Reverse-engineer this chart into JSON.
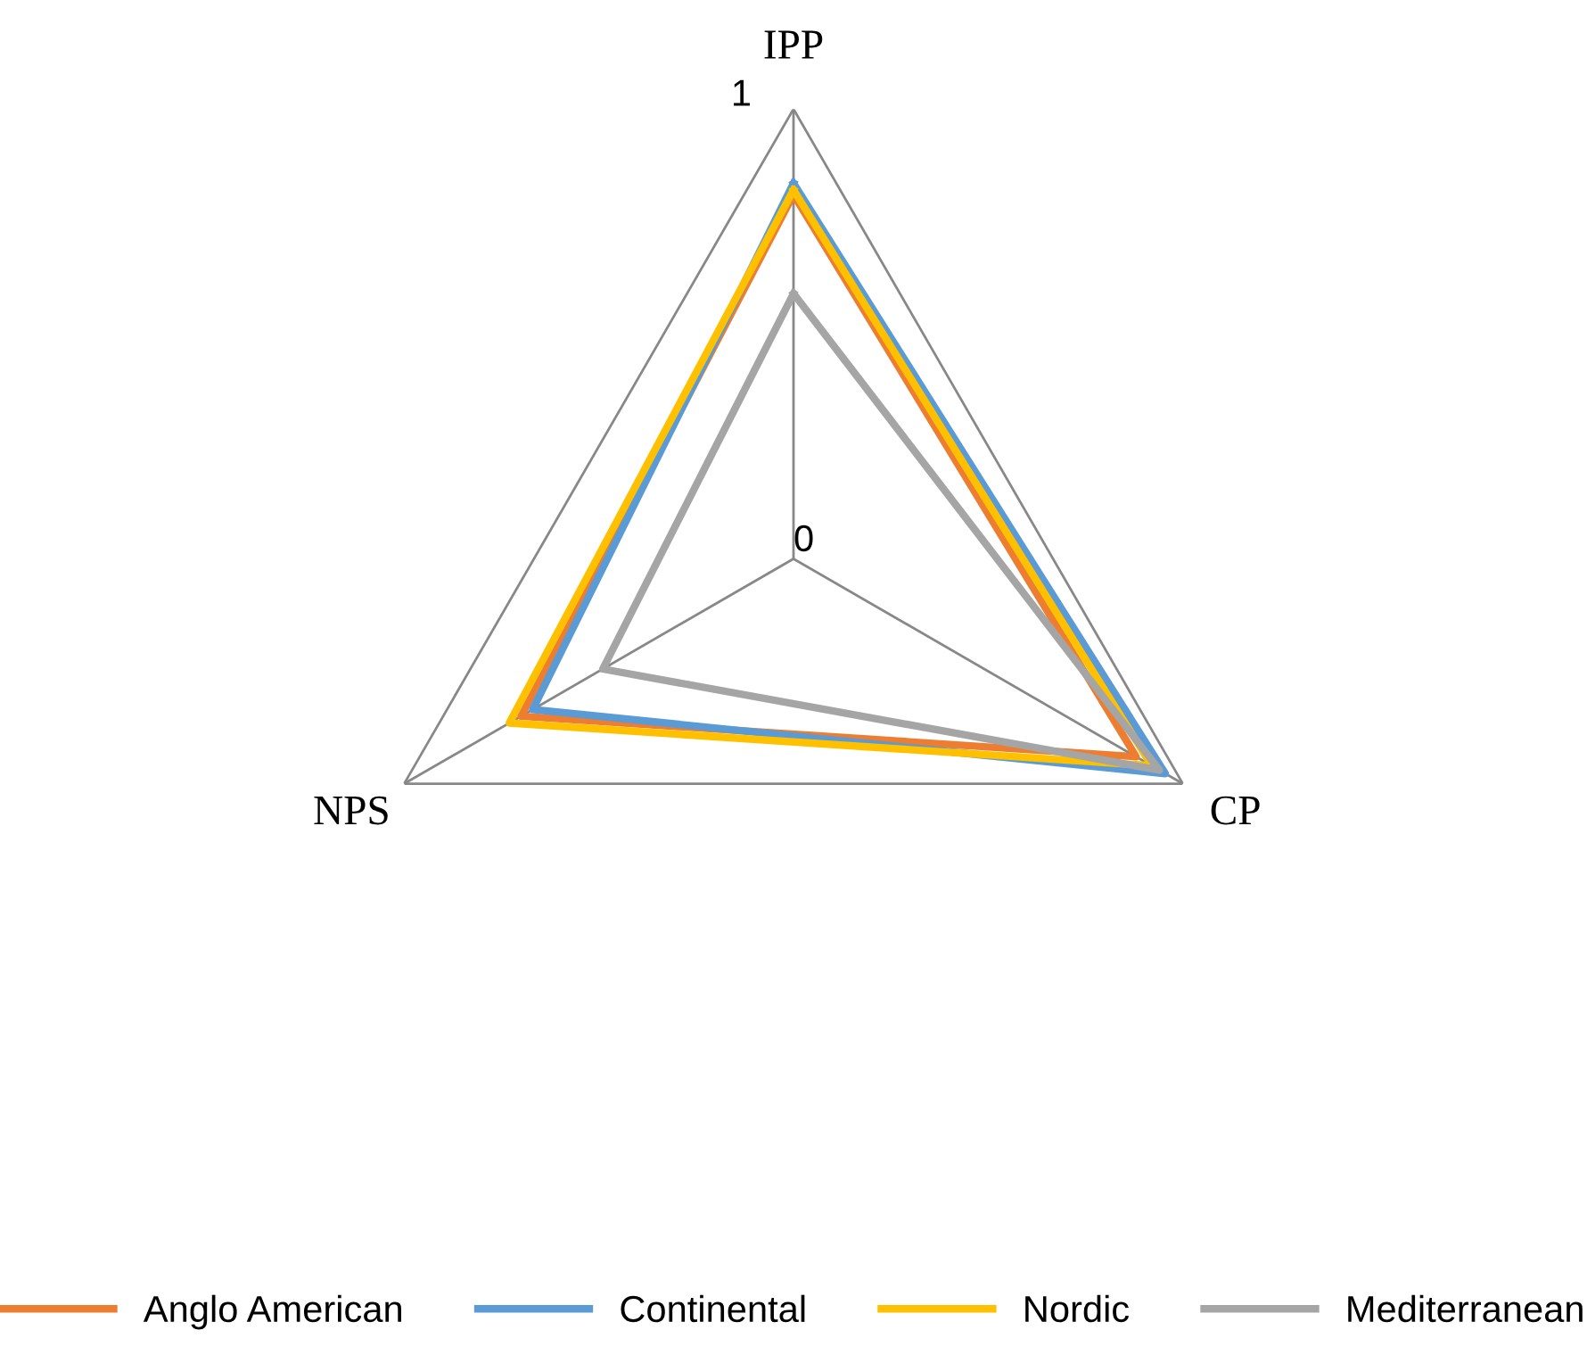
{
  "chart_data": {
    "type": "radar",
    "categories": [
      "IPP",
      "CP",
      "NPS"
    ],
    "series": [
      {
        "name": "Anglo American",
        "color": "#ed7d31",
        "values": [
          0.81,
          0.88,
          0.7
        ]
      },
      {
        "name": "Continental",
        "color": "#5b9bd5",
        "values": [
          0.835,
          0.955,
          0.67
        ]
      },
      {
        "name": "Nordic",
        "color": "#ffc000",
        "values": [
          0.82,
          0.92,
          0.73
        ]
      },
      {
        "name": "Mediterranean",
        "color": "#a5a5a5",
        "values": [
          0.59,
          0.94,
          0.49
        ]
      }
    ],
    "ylim": [
      0,
      1
    ],
    "yticks": [
      0,
      1
    ],
    "grid": true,
    "legend": "bottom",
    "marker": "none",
    "line_style": "solid"
  }
}
